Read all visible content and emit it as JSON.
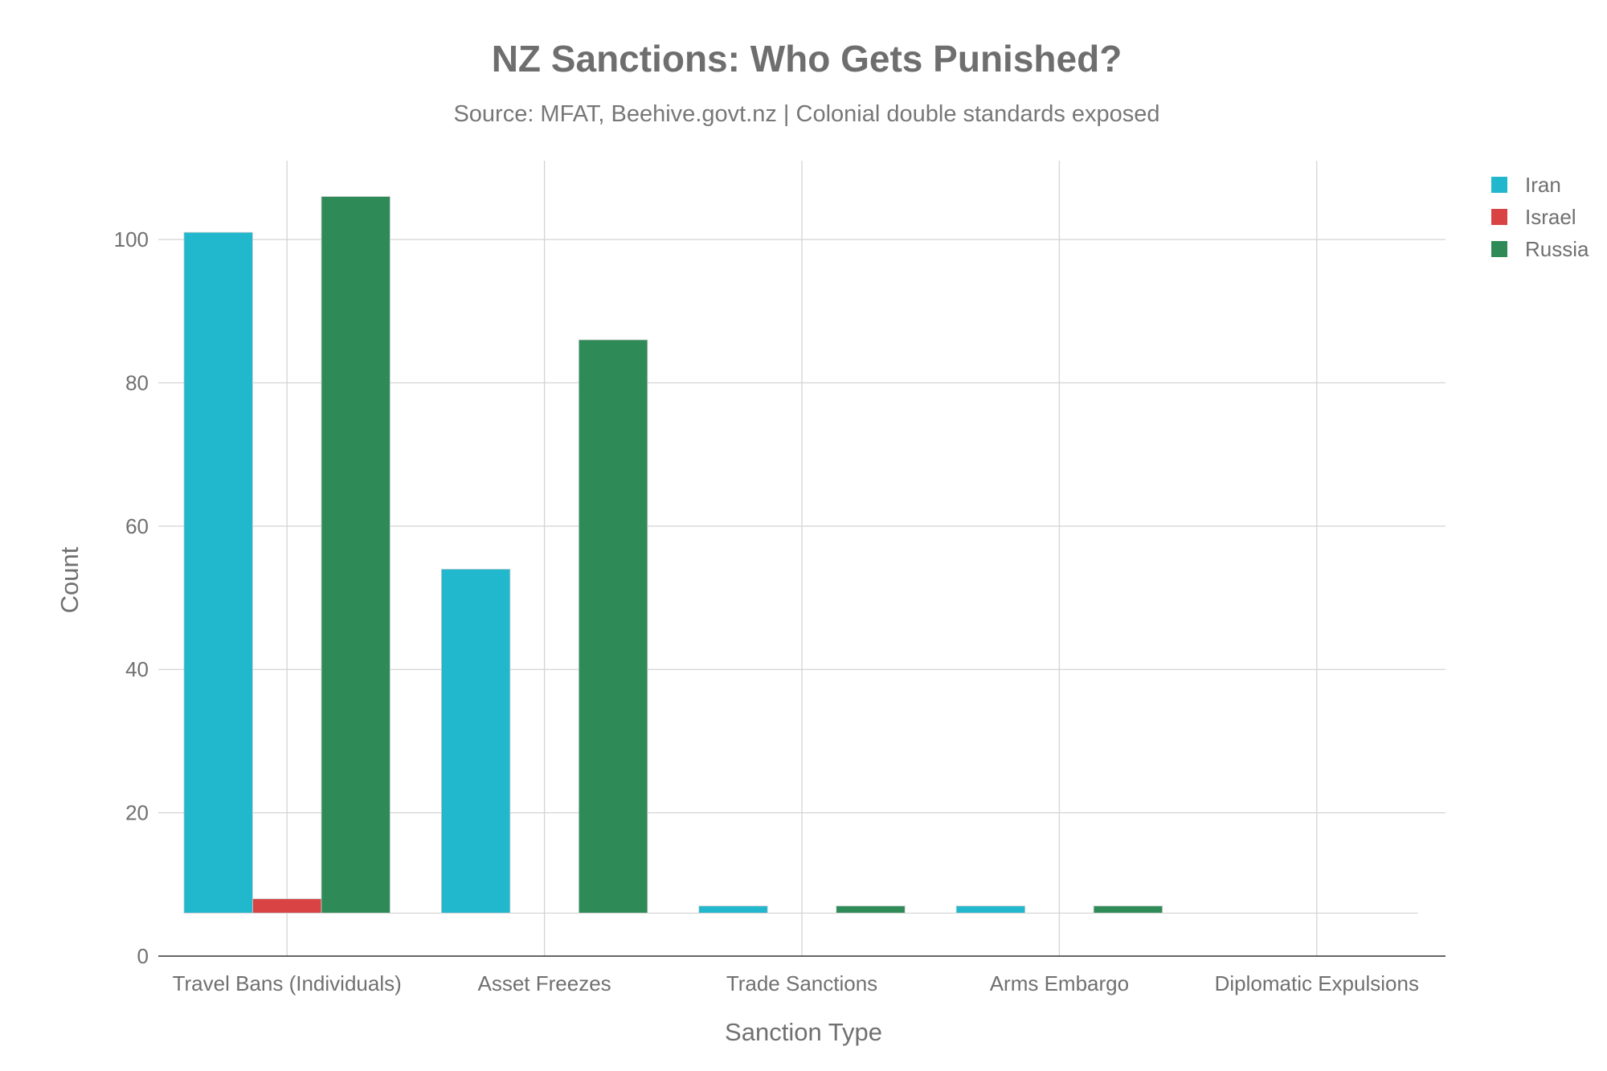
{
  "chart_data": {
    "type": "bar",
    "title": "NZ Sanctions: Who Gets Punished?",
    "subtitle": "Source: MFAT, Beehive.govt.nz | Colonial double standards exposed",
    "xlabel": "Sanction Type",
    "ylabel": "Count",
    "categories": [
      "Travel Bans (Individuals)",
      "Asset Freezes",
      "Trade Sanctions",
      "Arms Embargo",
      "Diplomatic Expulsions"
    ],
    "base": 6,
    "series": [
      {
        "name": "Iran",
        "color": "#21b7cd",
        "values": [
          101,
          54,
          7,
          7,
          6
        ]
      },
      {
        "name": "Israel",
        "color": "#d94343",
        "values": [
          8,
          6,
          6,
          6,
          6
        ]
      },
      {
        "name": "Russia",
        "color": "#2e8b57",
        "values": [
          106,
          86,
          7,
          7,
          6
        ]
      }
    ],
    "ylim": [
      0,
      111
    ],
    "yticks": [
      0,
      20,
      40,
      60,
      80,
      100
    ],
    "grid": true,
    "legend_position": "top-right"
  }
}
